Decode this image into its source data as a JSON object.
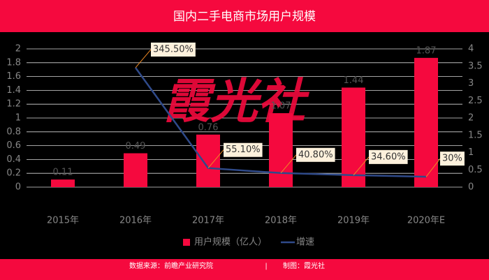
{
  "chart_data": {
    "type": "bar-line",
    "title": "国内二手电商市场用户规模",
    "watermark": "霞光社",
    "categories": [
      "2015年",
      "2016年",
      "2017年",
      "2018年",
      "2019年",
      "2020年E"
    ],
    "series": [
      {
        "name": "用户规模（亿人）",
        "type": "bar",
        "color": "#f5093e",
        "values": [
          0.11,
          0.49,
          0.76,
          1.07,
          1.44,
          1.87
        ]
      },
      {
        "name": "增速",
        "type": "line",
        "axis": "y2",
        "color": "#2f4a8a",
        "values": [
          null,
          3.455,
          0.551,
          0.408,
          0.346,
          0.3
        ],
        "value_labels": [
          null,
          "345.50%",
          "55.10%",
          "40.80%",
          "34.60%",
          "30%"
        ]
      }
    ],
    "ylim": [
      0,
      2
    ],
    "yticks": [
      0,
      0.2,
      0.4,
      0.6,
      0.8,
      1,
      1.2,
      1.4,
      1.6,
      1.8,
      2
    ],
    "y2lim": [
      0,
      4
    ],
    "y2ticks": [
      0,
      0.5,
      1,
      1.5,
      2,
      2.5,
      3,
      3.5,
      4
    ],
    "grid": true,
    "legend": "bottom"
  },
  "footer": {
    "source": "数据来源：前瞻产业研究院",
    "separator": "|",
    "credit": "制图：霞光社"
  }
}
